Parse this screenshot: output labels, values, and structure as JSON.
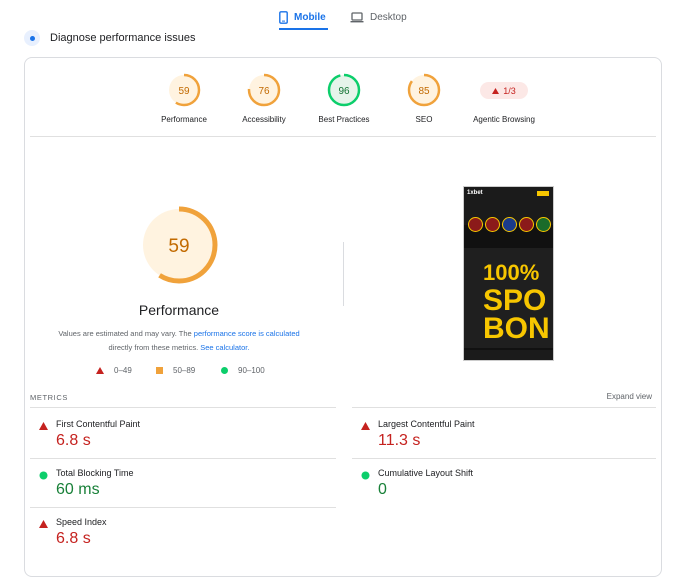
{
  "tabs": {
    "mobile": "Mobile",
    "desktop": "Desktop"
  },
  "diagnose": {
    "title": "Diagnose performance issues"
  },
  "scores": [
    {
      "label": "Performance",
      "value": "59",
      "status": "average"
    },
    {
      "label": "Accessibility",
      "value": "76",
      "status": "average"
    },
    {
      "label": "Best Practices",
      "value": "96",
      "status": "pass"
    },
    {
      "label": "SEO",
      "value": "85",
      "status": "average"
    }
  ],
  "agentic": {
    "label": "Agentic Browsing",
    "value": "1/3"
  },
  "main_score": {
    "value": "59",
    "title": "Performance",
    "note_part1": "Values are estimated and may vary. The ",
    "note_link1": "performance score is calculated",
    "note_part2": "directly from these metrics. ",
    "note_link2": "See calculator."
  },
  "legend": {
    "fail": "0–49",
    "average": "50–89",
    "pass": "90–100"
  },
  "screenshot": {
    "logo": "1xbet",
    "hero_line1": "100%",
    "hero_line2": "SPO",
    "hero_line3": "BON"
  },
  "metrics_section": {
    "header": "METRICS",
    "expand": "Expand view"
  },
  "metrics": [
    {
      "name": "First Contentful Paint",
      "value": "6.8 s",
      "status": "fail"
    },
    {
      "name": "Largest Contentful Paint",
      "value": "11.3 s",
      "status": "fail"
    },
    {
      "name": "Total Blocking Time",
      "value": "60 ms",
      "status": "pass"
    },
    {
      "name": "Cumulative Layout Shift",
      "value": "0",
      "status": "pass"
    },
    {
      "name": "Speed Index",
      "value": "6.8 s",
      "status": "fail"
    }
  ],
  "colors": {
    "accent": "#1a73e8",
    "fail": "#c5221f",
    "average": "#f0a23b",
    "pass": "#0cce6b",
    "average_bg": "#fff3e0",
    "pass_bg": "#e6f4ea"
  }
}
